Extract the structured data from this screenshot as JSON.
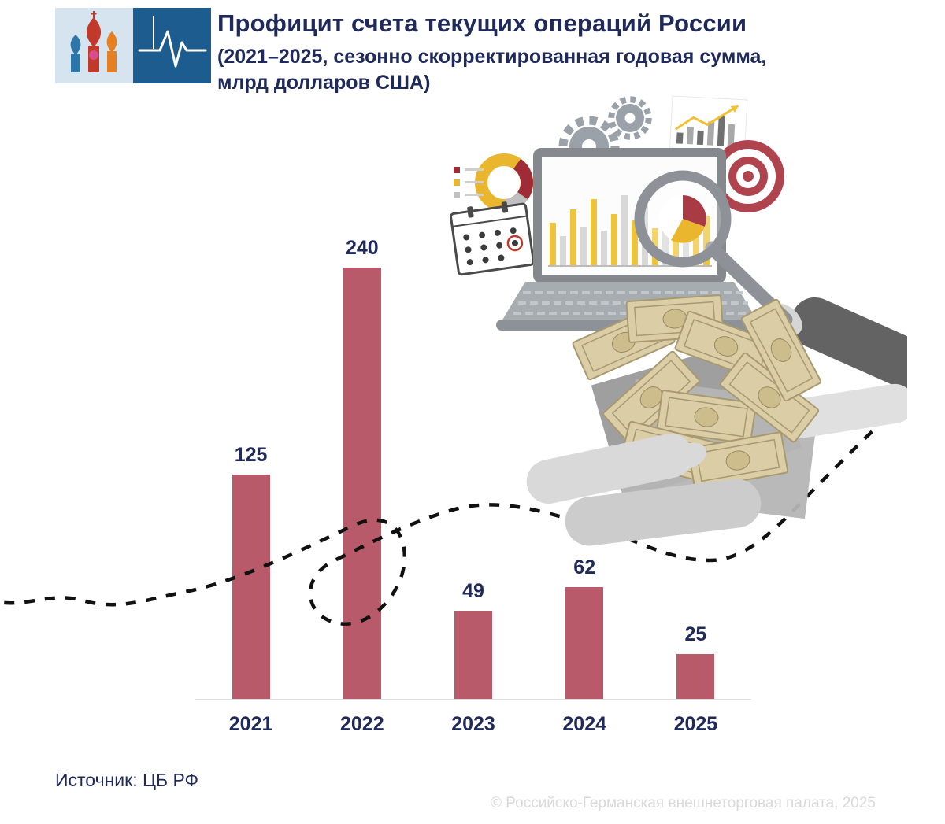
{
  "header": {
    "title": "Профицит счета текущих операций России",
    "subtitle_line1": "(2021–2025, сезонно скорректированная годовая сумма,",
    "subtitle_line2": "млрд долларов США)"
  },
  "chart_data": {
    "type": "bar",
    "categories": [
      "2021",
      "2022",
      "2023",
      "2024",
      "2025"
    ],
    "values": [
      125,
      240,
      49,
      62,
      25
    ],
    "title": "Профицит счета текущих операций России",
    "subtitle": "(2021–2025, сезонно скорректированная годовая сумма, млрд долларов США)",
    "unit": "млрд долларов США",
    "ylim": [
      0,
      240
    ],
    "grid": false,
    "legend": "none",
    "bar_color": "#b85a6a",
    "value_label_color": "#1f2a5b",
    "source": "ЦБ РФ"
  },
  "footer": {
    "source_label": "Источник: ЦБ РФ",
    "copyright": "© Российско-Германская внешнеторговая палата, 2025"
  },
  "colors": {
    "navy": "#1f2a5b",
    "bar": "#b85a6a",
    "logo_blue": "#1d5c8f",
    "logo_bg": "#d6e4f0",
    "baseline": "#dddddd",
    "copyright_gray": "#d9d9d9",
    "dashed_line": "#111111"
  },
  "decor": {
    "icons": [
      "stbasil-cathedral-icon",
      "heartbeat-icon",
      "calendar-icon",
      "donut-chart-icon",
      "gear-icon",
      "laptop-icon",
      "magnifier-icon",
      "target-icon",
      "mini-chart-icon",
      "money-bills-illustration",
      "hand-illustration",
      "dashed-path-line"
    ]
  }
}
